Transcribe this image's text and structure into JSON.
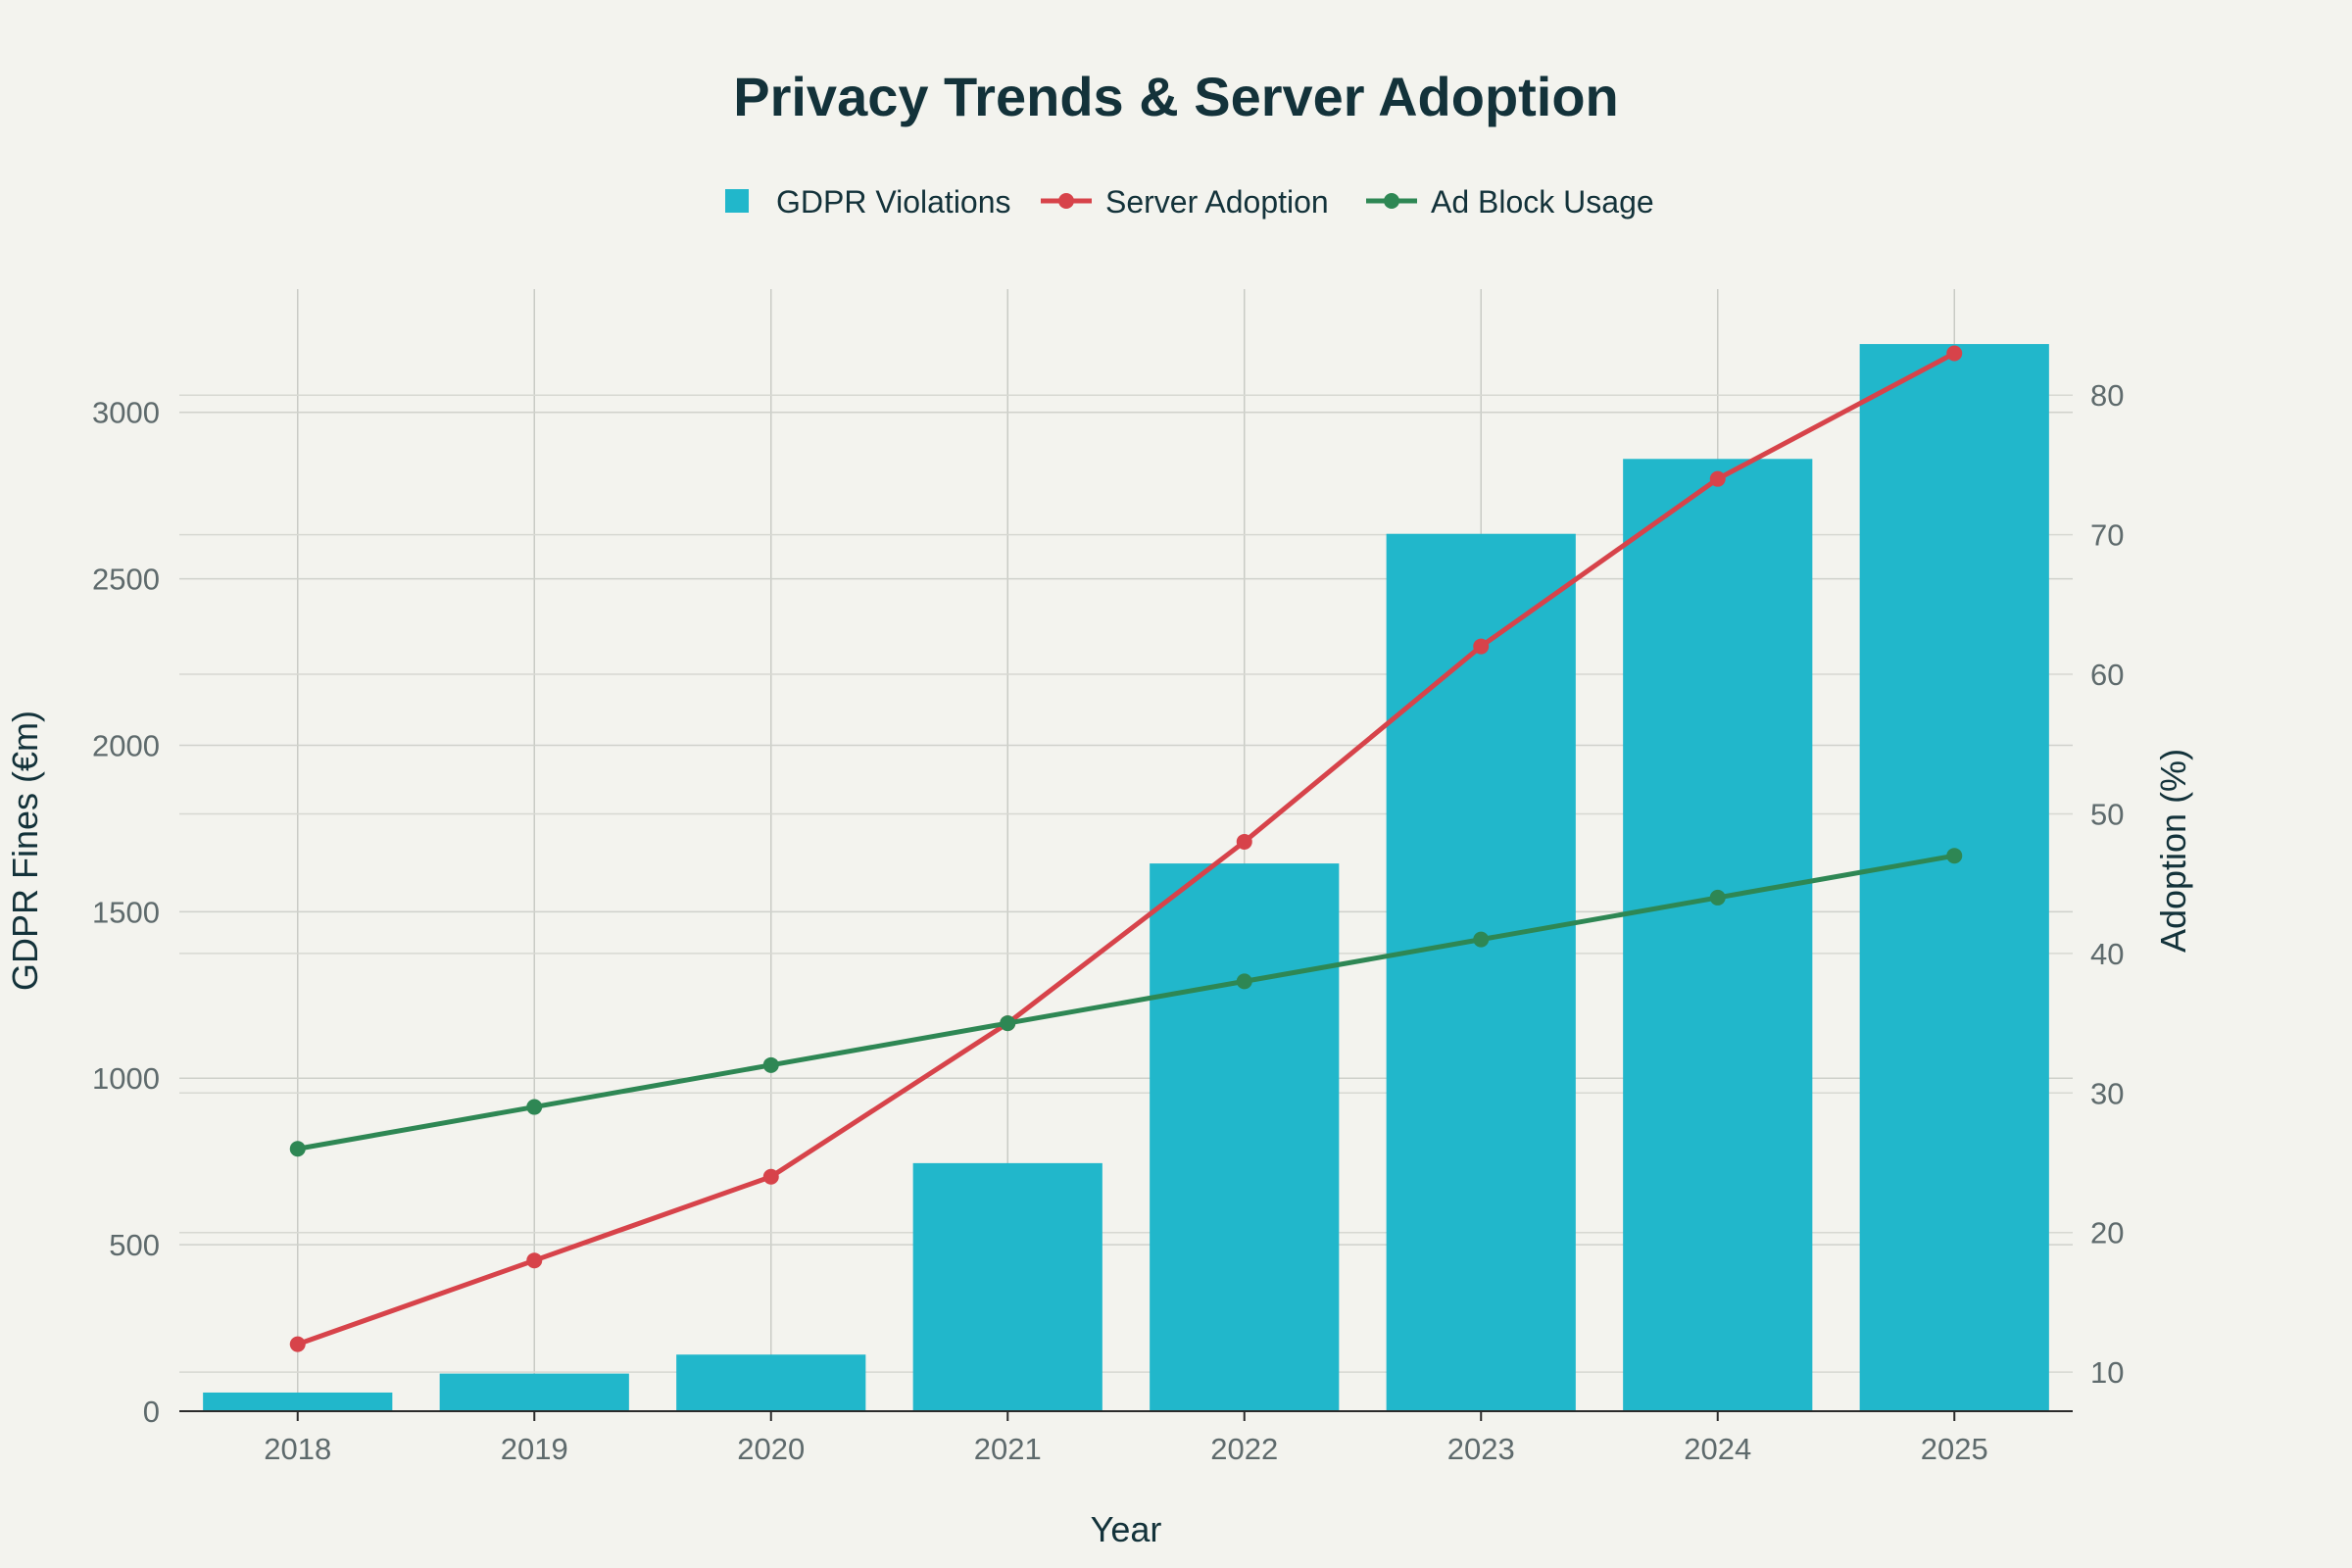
{
  "chart_data": {
    "type": "bar",
    "title": "Privacy Trends & Server Adoption",
    "categories": [
      "2018",
      "2019",
      "2020",
      "2021",
      "2022",
      "2023",
      "2024",
      "2025"
    ],
    "series": [
      {
        "name": "GDPR Violations",
        "kind": "bar",
        "axis": "left",
        "color": "#21b7cb",
        "values": [
          56,
          113,
          170,
          745,
          1645,
          2635,
          2860,
          3205
        ]
      },
      {
        "name": "Server Adoption",
        "kind": "line",
        "axis": "right",
        "color": "#d7434a",
        "values": [
          12,
          18,
          24,
          35,
          48,
          62,
          74,
          83
        ]
      },
      {
        "name": "Ad Block Usage",
        "kind": "line",
        "axis": "right",
        "color": "#2e8754",
        "values": [
          26,
          29,
          32,
          35,
          38,
          41,
          44,
          47
        ]
      }
    ],
    "xlabel": "Year",
    "ylabel": "GDPR Fines (€m)",
    "y2label": "Adoption (%)",
    "ylim": [
      0,
      3370
    ],
    "yticks": [
      0,
      500,
      1000,
      1500,
      2000,
      2500,
      3000
    ],
    "y2lim": [
      7.2,
      87.6
    ],
    "y2ticks": [
      10,
      20,
      30,
      40,
      50,
      60,
      70,
      80
    ],
    "legend_position": "top-center",
    "grid": true
  }
}
